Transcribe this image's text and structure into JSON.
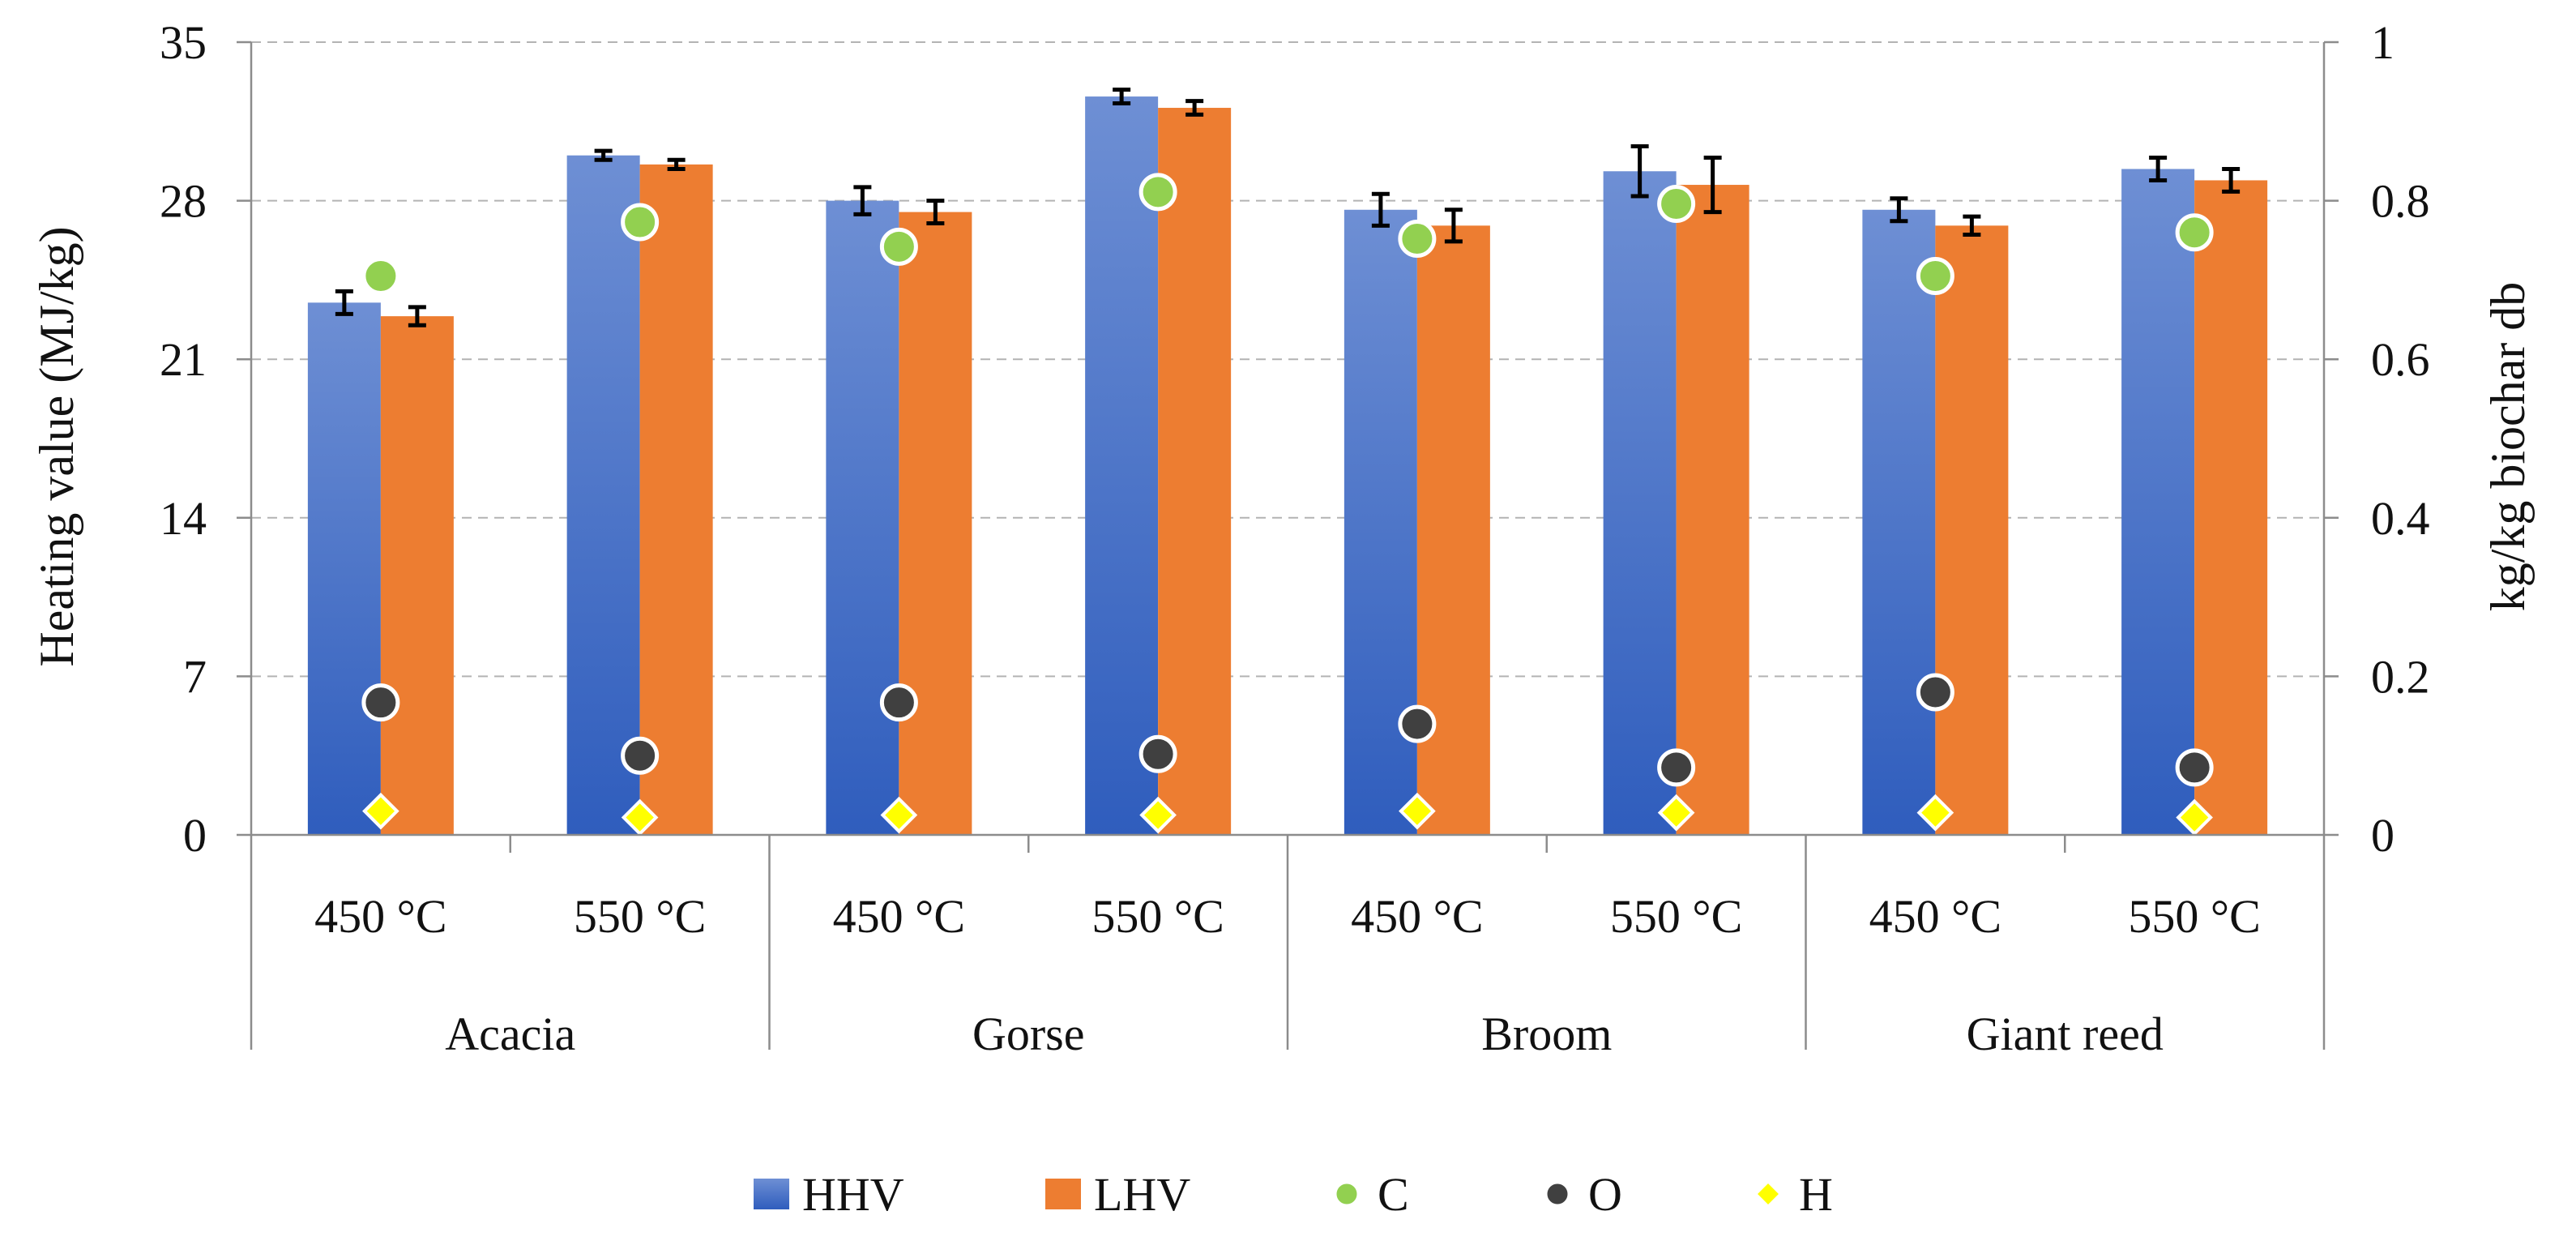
{
  "chart_data": {
    "type": "bar",
    "title": "",
    "ylabel": "Heating value (MJ/kg)",
    "y2label": "kg/kg biochar db",
    "ylim": [
      0,
      35
    ],
    "y2lim": [
      0,
      1
    ],
    "yticks": [
      0,
      7,
      14,
      21,
      28,
      35
    ],
    "y2ticks": [
      0,
      0.2,
      0.4,
      0.6,
      0.8,
      1
    ],
    "y2tick_labels": [
      "0",
      "0.2",
      "0.4",
      "0.6",
      "0.8",
      "1"
    ],
    "grid": true,
    "legend_position": "bottom",
    "groups": [
      {
        "name": "Acacia",
        "categories": [
          "450 °C",
          "550 °C"
        ]
      },
      {
        "name": "Gorse",
        "categories": [
          "450 °C",
          "550 °C"
        ]
      },
      {
        "name": "Broom",
        "categories": [
          "450 °C",
          "550 °C"
        ]
      },
      {
        "name": "Giant reed",
        "categories": [
          "450 °C",
          "550 °C"
        ]
      }
    ],
    "series": [
      {
        "name": "HHV",
        "kind": "bar",
        "axis": "left",
        "color": "#4472c4",
        "values": [
          23.5,
          30.0,
          28.0,
          32.6,
          27.6,
          29.3,
          27.6,
          29.4
        ],
        "errors": [
          0.5,
          0.2,
          0.6,
          0.3,
          0.7,
          1.1,
          0.5,
          0.5
        ]
      },
      {
        "name": "LHV",
        "kind": "bar",
        "axis": "left",
        "color": "#ed7d31",
        "values": [
          22.9,
          29.6,
          27.5,
          32.1,
          26.9,
          28.7,
          26.9,
          28.9
        ],
        "errors": [
          0.4,
          0.2,
          0.5,
          0.3,
          0.7,
          1.2,
          0.4,
          0.5
        ]
      },
      {
        "name": "C",
        "kind": "marker",
        "axis": "right",
        "marker": "circle",
        "color": "#92d050",
        "values": [
          0.705,
          0.773,
          0.742,
          0.811,
          0.752,
          0.796,
          0.705,
          0.76
        ]
      },
      {
        "name": "O",
        "kind": "marker",
        "axis": "right",
        "marker": "circle",
        "color": "#404040",
        "values": [
          0.167,
          0.1,
          0.167,
          0.102,
          0.14,
          0.085,
          0.18,
          0.085
        ]
      },
      {
        "name": "H",
        "kind": "marker",
        "axis": "right",
        "marker": "diamond",
        "color": "#ffff00",
        "values": [
          0.03,
          0.022,
          0.025,
          0.025,
          0.03,
          0.028,
          0.028,
          0.022
        ]
      }
    ]
  }
}
